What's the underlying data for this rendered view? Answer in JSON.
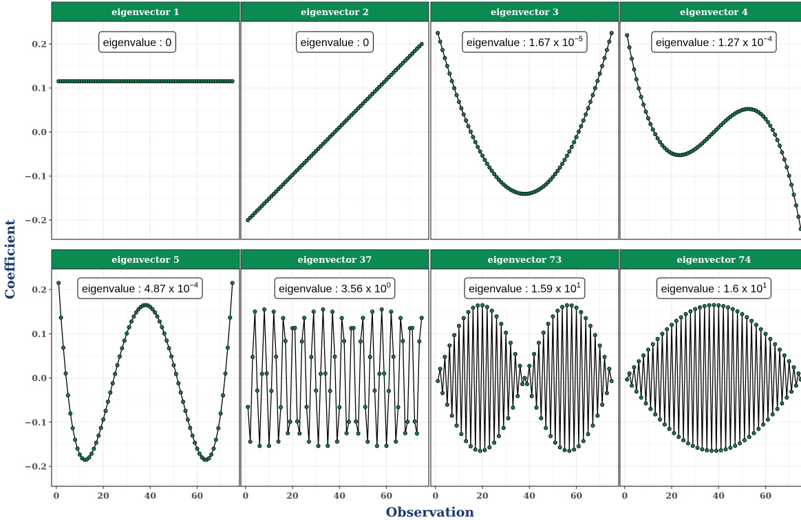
{
  "colors": {
    "strip": "#0b8a52",
    "point_fill": "#1d7a4f",
    "line": "#000000",
    "grid": "#ebebeb",
    "axis_title": "#1f3a6e"
  },
  "axes": {
    "xlabel": "Observation",
    "ylabel": "Coefficient",
    "x_ticks": [
      0,
      20,
      40,
      60
    ],
    "y_ticks": [
      -0.2,
      -0.1,
      0.0,
      0.1,
      0.2
    ],
    "y_tick_labels": [
      "−0.2",
      "−0.1",
      "0.0",
      "0.1",
      "0.2"
    ]
  },
  "chart_data": {
    "type": "line",
    "layout": "facet grid 2 rows x 4 columns",
    "n_observations": 75,
    "xlim": [
      -2,
      78
    ],
    "panels_row1_ylim": [
      -0.225,
      0.23
    ],
    "panels_row2_ylim": [
      -0.225,
      0.23
    ],
    "grid": true,
    "markers": "filled circles",
    "panels": [
      {
        "title": "eigenvector 1",
        "annotation": {
          "prefix": "eigenvalue : 0",
          "sup": ""
        },
        "description": "constant 0.1155"
      },
      {
        "title": "eigenvector 2",
        "annotation": {
          "prefix": "eigenvalue : 0",
          "sup": ""
        },
        "description": "linear from -0.2 to 0.2"
      },
      {
        "title": "eigenvector 3",
        "annotation": {
          "prefix": "eigenvalue : 1.67 x 10",
          "sup": "−5"
        },
        "description": "parabola, min -0.14 at x=38"
      },
      {
        "title": "eigenvector 4",
        "annotation": {
          "prefix": "eigenvalue : 1.27 x 10",
          "sup": "−4"
        },
        "description": "cubic, 0.22 to -0.22"
      },
      {
        "title": "eigenvector 5",
        "annotation": {
          "prefix": "eigenvalue : 4.87 x 10",
          "sup": "−4"
        },
        "description": "quartic, W shape"
      },
      {
        "title": "eigenvector 37",
        "annotation": {
          "prefix": "eigenvalue : 3.56 x 10",
          "sup": "0"
        },
        "description": "high-frequency irregular oscillation"
      },
      {
        "title": "eigenvector 73",
        "annotation": {
          "prefix": "eigenvalue : 1.59 x 10",
          "sup": "1"
        },
        "description": "alternating, two-lobe envelope"
      },
      {
        "title": "eigenvector 74",
        "annotation": {
          "prefix": "eigenvalue : 1.6 x 10",
          "sup": "1"
        },
        "description": "alternating, single-lobe envelope"
      }
    ]
  }
}
